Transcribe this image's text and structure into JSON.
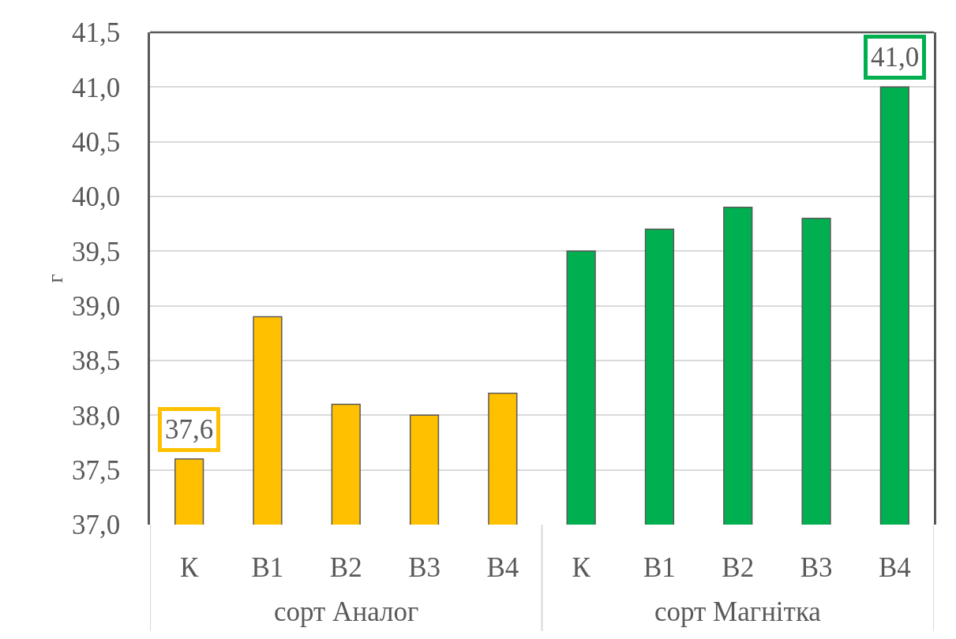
{
  "chart_data": {
    "type": "bar",
    "ylabel": "г",
    "categories": [
      "К",
      "В1",
      "В2",
      "В3",
      "В4",
      "К",
      "В1",
      "В2",
      "В3",
      "В4"
    ],
    "series": [
      {
        "name": "сорт Аналог",
        "color": "#ffc000",
        "values": [
          37.6,
          38.9,
          38.1,
          38.0,
          38.2,
          null,
          null,
          null,
          null,
          null
        ],
        "value_labels": [
          "37,6",
          null,
          null,
          null,
          null,
          null,
          null,
          null,
          null,
          null
        ]
      },
      {
        "name": "сорт Магнітка",
        "color": "#00b050",
        "values": [
          null,
          null,
          null,
          null,
          null,
          39.5,
          39.7,
          39.9,
          39.8,
          41.0
        ],
        "value_labels": [
          null,
          null,
          null,
          null,
          null,
          null,
          null,
          null,
          null,
          "41,0"
        ]
      }
    ],
    "ylim": [
      37.0,
      41.5
    ],
    "yticks": [
      {
        "value": 37.0,
        "label": "37,0"
      },
      {
        "value": 37.5,
        "label": "37,5"
      },
      {
        "value": 38.0,
        "label": "38,0"
      },
      {
        "value": 38.5,
        "label": "38,5"
      },
      {
        "value": 39.0,
        "label": "39,0"
      },
      {
        "value": 39.5,
        "label": "39,5"
      },
      {
        "value": 40.0,
        "label": "40,0"
      },
      {
        "value": 40.5,
        "label": "40,5"
      },
      {
        "value": 41.0,
        "label": "41,0"
      },
      {
        "value": 41.5,
        "label": "41,5"
      }
    ],
    "grid": "y"
  }
}
